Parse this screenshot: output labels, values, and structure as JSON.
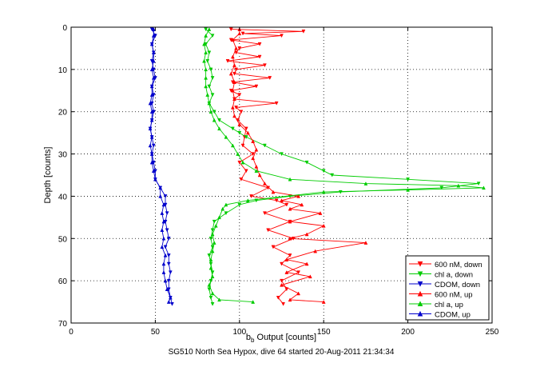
{
  "chart_data": {
    "type": "line",
    "title": "",
    "caption": "SG510 North Sea Hypox, dive 64 started 20-Aug-2011 21:34:34",
    "xlabel": "b_b Output [counts]",
    "ylabel": "Depth [counts]",
    "xlim": [
      0,
      250
    ],
    "ylim": [
      0,
      70
    ],
    "y_reversed": true,
    "xticks": [
      0,
      50,
      100,
      150,
      200,
      250
    ],
    "yticks": [
      0,
      10,
      20,
      30,
      40,
      50,
      60,
      70
    ],
    "grid": true,
    "legend_position": "lower-right",
    "series": [
      {
        "name": "600 nM, down",
        "color": "#ff0000",
        "marker": "down-triangle",
        "points": [
          [
            95,
            0.5
          ],
          [
            138,
            1
          ],
          [
            102,
            1.5
          ],
          [
            125,
            2
          ],
          [
            95,
            3
          ],
          [
            112,
            4
          ],
          [
            100,
            5
          ],
          [
            98,
            6
          ],
          [
            112,
            7
          ],
          [
            93,
            8
          ],
          [
            115,
            9
          ],
          [
            98,
            10
          ],
          [
            97,
            11
          ],
          [
            118,
            12
          ],
          [
            96,
            13
          ],
          [
            110,
            14
          ],
          [
            95,
            15
          ],
          [
            100,
            16
          ],
          [
            97,
            17
          ],
          [
            122,
            18
          ],
          [
            98,
            19
          ],
          [
            101,
            20
          ],
          [
            99,
            22
          ],
          [
            104,
            24
          ],
          [
            103,
            26
          ],
          [
            102,
            28
          ],
          [
            108,
            30
          ],
          [
            100,
            32
          ],
          [
            104,
            34
          ],
          [
            101,
            36
          ],
          [
            117,
            38
          ],
          [
            107,
            40
          ],
          [
            122,
            41
          ],
          [
            128,
            42
          ],
          [
            115,
            44
          ],
          [
            130,
            46
          ],
          [
            117,
            48
          ],
          [
            132,
            50
          ],
          [
            120,
            52
          ],
          [
            130,
            54
          ],
          [
            125,
            56
          ],
          [
            135,
            58
          ],
          [
            125,
            60
          ],
          [
            128,
            62
          ],
          [
            123,
            64
          ],
          [
            126,
            65.5
          ]
        ]
      },
      {
        "name": "chl a, down",
        "color": "#00cc00",
        "marker": "down-triangle",
        "points": [
          [
            80,
            0.5
          ],
          [
            84,
            2
          ],
          [
            80,
            4
          ],
          [
            82,
            6
          ],
          [
            81,
            8
          ],
          [
            83,
            10
          ],
          [
            84,
            12
          ],
          [
            82,
            14
          ],
          [
            84,
            16
          ],
          [
            82,
            18
          ],
          [
            85,
            20
          ],
          [
            88,
            22
          ],
          [
            96,
            24
          ],
          [
            100,
            25
          ],
          [
            104,
            26
          ],
          [
            115,
            28
          ],
          [
            125,
            30
          ],
          [
            140,
            32
          ],
          [
            150,
            34
          ],
          [
            155,
            35
          ],
          [
            200,
            36
          ],
          [
            242,
            37
          ],
          [
            220,
            38
          ],
          [
            160,
            39
          ],
          [
            130,
            40
          ],
          [
            110,
            41
          ],
          [
            100,
            42
          ],
          [
            92,
            44
          ],
          [
            85,
            46
          ],
          [
            84,
            48
          ],
          [
            83,
            50
          ],
          [
            84,
            52
          ],
          [
            82,
            54
          ],
          [
            83,
            56
          ],
          [
            84,
            58
          ],
          [
            83,
            60
          ],
          [
            82,
            62
          ],
          [
            83,
            64
          ],
          [
            84,
            65.5
          ]
        ]
      },
      {
        "name": "CDOM, down",
        "color": "#0000cc",
        "marker": "down-triangle",
        "points": [
          [
            48,
            0.5
          ],
          [
            50,
            2
          ],
          [
            48,
            4
          ],
          [
            49,
            6
          ],
          [
            48,
            8
          ],
          [
            49,
            10
          ],
          [
            50,
            12
          ],
          [
            48,
            14
          ],
          [
            49,
            16
          ],
          [
            48,
            18
          ],
          [
            49,
            20
          ],
          [
            48,
            22
          ],
          [
            47,
            24
          ],
          [
            48,
            26
          ],
          [
            49,
            28
          ],
          [
            48,
            30
          ],
          [
            49,
            32
          ],
          [
            50,
            34
          ],
          [
            50,
            36
          ],
          [
            53,
            38
          ],
          [
            56,
            40
          ],
          [
            56,
            42
          ],
          [
            57,
            44
          ],
          [
            56,
            46
          ],
          [
            57,
            48
          ],
          [
            58,
            50
          ],
          [
            56,
            52
          ],
          [
            58,
            54
          ],
          [
            58,
            56
          ],
          [
            59,
            58
          ],
          [
            58,
            60
          ],
          [
            58,
            62
          ],
          [
            59,
            64
          ],
          [
            60,
            65.5
          ]
        ]
      },
      {
        "name": "600 nM, up",
        "color": "#ff0000",
        "marker": "up-triangle",
        "points": [
          [
            150,
            65
          ],
          [
            130,
            64.5
          ],
          [
            135,
            63
          ],
          [
            125,
            61
          ],
          [
            142,
            59
          ],
          [
            128,
            58
          ],
          [
            140,
            56
          ],
          [
            128,
            55
          ],
          [
            145,
            53
          ],
          [
            175,
            51
          ],
          [
            130,
            50
          ],
          [
            140,
            49
          ],
          [
            150,
            47
          ],
          [
            130,
            46
          ],
          [
            148,
            44
          ],
          [
            130,
            43
          ],
          [
            137,
            42
          ],
          [
            125,
            41
          ],
          [
            135,
            40
          ],
          [
            120,
            39
          ],
          [
            115,
            37
          ],
          [
            112,
            35
          ],
          [
            110,
            33
          ],
          [
            108,
            31
          ],
          [
            110,
            29
          ],
          [
            108,
            27
          ],
          [
            105,
            25
          ],
          [
            100,
            23
          ],
          [
            97,
            21
          ],
          [
            96,
            19
          ],
          [
            97,
            17
          ],
          [
            96,
            15
          ],
          [
            97,
            13
          ],
          [
            95,
            11
          ],
          [
            97,
            9
          ],
          [
            96,
            7
          ],
          [
            98,
            5
          ],
          [
            96,
            3
          ],
          [
            100,
            1.5
          ],
          [
            100,
            0.5
          ]
        ]
      },
      {
        "name": "chl a, up",
        "color": "#00cc00",
        "marker": "up-triangle",
        "points": [
          [
            108,
            65
          ],
          [
            88,
            64.5
          ],
          [
            84,
            63
          ],
          [
            82,
            61
          ],
          [
            84,
            59
          ],
          [
            83,
            57
          ],
          [
            83,
            55
          ],
          [
            84,
            53
          ],
          [
            85,
            51
          ],
          [
            84,
            49
          ],
          [
            86,
            47
          ],
          [
            88,
            45
          ],
          [
            90,
            43
          ],
          [
            92,
            42
          ],
          [
            105,
            41
          ],
          [
            150,
            39
          ],
          [
            200,
            38.5
          ],
          [
            245,
            38
          ],
          [
            230,
            37.5
          ],
          [
            175,
            37
          ],
          [
            130,
            36
          ],
          [
            110,
            34
          ],
          [
            102,
            32
          ],
          [
            99,
            30
          ],
          [
            96,
            28
          ],
          [
            92,
            26
          ],
          [
            88,
            24
          ],
          [
            85,
            22
          ],
          [
            83,
            20
          ],
          [
            82,
            18
          ],
          [
            81,
            16
          ],
          [
            80,
            14
          ],
          [
            80,
            12
          ],
          [
            80,
            10
          ],
          [
            79,
            8
          ],
          [
            80,
            6
          ],
          [
            79,
            4
          ],
          [
            80,
            2
          ],
          [
            82,
            0.5
          ]
        ]
      },
      {
        "name": "CDOM, up",
        "color": "#0000cc",
        "marker": "up-triangle",
        "points": [
          [
            58,
            65
          ],
          [
            59,
            64
          ],
          [
            57,
            62
          ],
          [
            56,
            60
          ],
          [
            55,
            58
          ],
          [
            55,
            56
          ],
          [
            56,
            54
          ],
          [
            54,
            52
          ],
          [
            55,
            50
          ],
          [
            54,
            48
          ],
          [
            55,
            46
          ],
          [
            54,
            44
          ],
          [
            55,
            42
          ],
          [
            53,
            40
          ],
          [
            53,
            38
          ],
          [
            50,
            36
          ],
          [
            49,
            34
          ],
          [
            48,
            32
          ],
          [
            48,
            30
          ],
          [
            47,
            28
          ],
          [
            48,
            26
          ],
          [
            47,
            24
          ],
          [
            48,
            22
          ],
          [
            48,
            20
          ],
          [
            47,
            18
          ],
          [
            48,
            16
          ],
          [
            48,
            14
          ],
          [
            49,
            12
          ],
          [
            48,
            10
          ],
          [
            49,
            8
          ],
          [
            49,
            6
          ],
          [
            48,
            4
          ],
          [
            49,
            2
          ],
          [
            49,
            0.5
          ]
        ]
      }
    ]
  }
}
